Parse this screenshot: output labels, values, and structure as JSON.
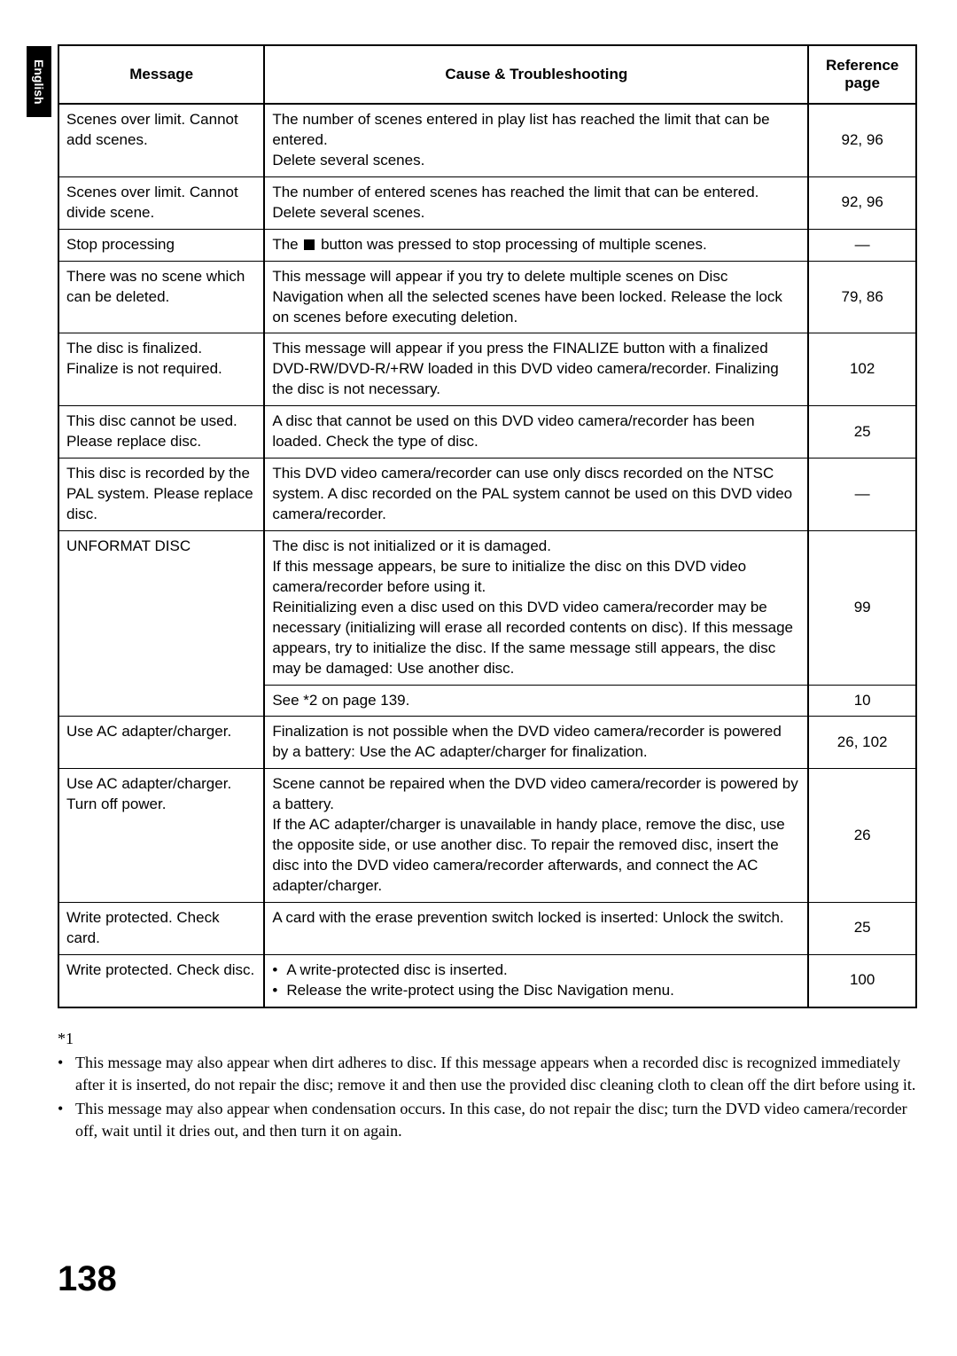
{
  "sideTab": "English",
  "headers": {
    "message": "Message",
    "cause": "Cause & Troubleshooting",
    "reference": "Reference page"
  },
  "rows": [
    {
      "msg": "Scenes over limit. Cannot add scenes.",
      "cause": "The number of scenes entered in play list has reached the limit that can be entered.\nDelete several scenes.",
      "ref": "92, 96"
    },
    {
      "msg": "Scenes over limit. Cannot divide scene.",
      "cause": "The number of entered scenes has reached the limit that can be entered.\nDelete several scenes.",
      "ref": "92, 96"
    },
    {
      "msg": "Stop processing",
      "causePrefix": "The ",
      "causeSuffix": " button was pressed to stop processing of multiple scenes.",
      "ref": "—",
      "hasStopIcon": true
    },
    {
      "msg": "There was no scene which can be deleted.",
      "cause": "This message will appear if you try to delete multiple scenes on Disc Navigation when all the selected scenes have been locked. Release the lock on scenes before executing deletion.",
      "ref": "79, 86"
    },
    {
      "msg": "The disc is finalized. Finalize is not required.",
      "cause": "This message will appear if you press the FINALIZE button with a finalized DVD-RW/DVD-R/+RW loaded in this DVD video camera/recorder. Finalizing the disc is not necessary.",
      "ref": "102"
    },
    {
      "msg": "This disc cannot be used. Please replace disc.",
      "cause": "A disc that cannot be used on this DVD video camera/recorder has been loaded. Check the type of disc.",
      "ref": "25"
    },
    {
      "msg": "This disc is recorded by the PAL system. Please replace disc.",
      "cause": "This DVD video camera/recorder can use only discs recorded on the NTSC system. A disc recorded on the PAL system cannot be used on this DVD video camera/recorder.",
      "ref": "—"
    },
    {
      "msg": "UNFORMAT DISC",
      "cause": "The disc is not initialized or it is damaged.\nIf this message appears, be sure to initialize the disc on this DVD video camera/recorder before using it.\nReinitializing even a disc used on this DVD video camera/recorder may be necessary (initializing will erase all recorded contents on disc). If this message appears, try to initialize the disc. If the same message still appears, the disc may be damaged: Use another disc.",
      "ref": "99",
      "rowspanMsg": 2
    },
    {
      "msg": null,
      "cause": "See *2 on page 139.",
      "ref": "10"
    },
    {
      "msg": "Use AC adapter/charger.",
      "cause": "Finalization is not possible when the DVD video camera/recorder is powered by a battery: Use the AC adapter/charger for finalization.",
      "ref": "26, 102"
    },
    {
      "msg": "Use AC adapter/charger.\nTurn off power.",
      "cause": "Scene cannot be repaired when the DVD video camera/recorder is powered by a battery.\nIf the AC adapter/charger is unavailable in handy place, remove the disc, use the opposite side, or use another disc. To repair the removed disc, insert the disc into the DVD video camera/recorder afterwards, and connect the AC adapter/charger.",
      "ref": "26"
    },
    {
      "msg": "Write protected. Check card.",
      "cause": "A card with the erase prevention switch locked is inserted: Unlock the switch.",
      "ref": "25"
    },
    {
      "msg": "Write protected. Check disc.",
      "causeBullets": [
        "A write-protected disc is inserted.",
        "Release the write-protect using the Disc Navigation menu."
      ],
      "ref": "100"
    }
  ],
  "footnoteLabel": "*1",
  "footnotes": [
    "This message may also appear when dirt adheres to disc. If this message appears when a recorded disc is recognized immediately after it is inserted, do not repair the disc; remove it and then use the provided disc cleaning cloth to clean off the dirt before using it.",
    "This message may also appear when condensation occurs. In this case, do not repair the disc; turn the DVD video camera/recorder off, wait until it dries out, and then turn it on again."
  ],
  "pageNumber": "138"
}
